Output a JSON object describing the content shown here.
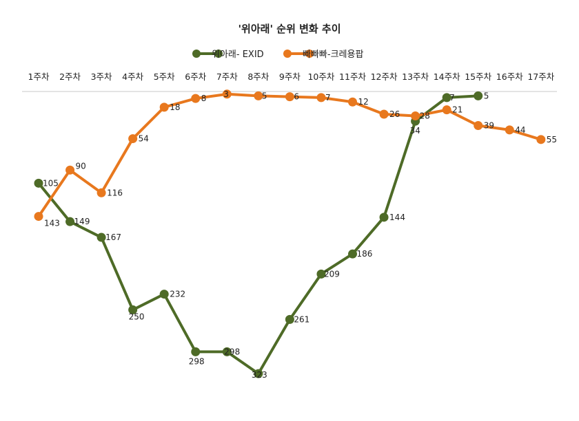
{
  "chart_data": {
    "type": "line",
    "title": "'위아래' 순위 변화 추이",
    "categories": [
      "1주차",
      "2주차",
      "3주차",
      "4주차",
      "5주차",
      "6주차",
      "7주차",
      "8주차",
      "9주차",
      "10주차",
      "11주차",
      "12주차",
      "13주차",
      "14주차",
      "15주차",
      "16주차",
      "17주차"
    ],
    "series": [
      {
        "name": "위아래- EXID",
        "color": "#4e6b27",
        "values": [
          105,
          149,
          167,
          250,
          232,
          298,
          298,
          323,
          261,
          209,
          186,
          144,
          34,
          7,
          5,
          null,
          null
        ]
      },
      {
        "name": "빠빠빠-크레용팝",
        "color": "#e8781e",
        "values": [
          143,
          90,
          116,
          54,
          18,
          8,
          3,
          5,
          6,
          7,
          12,
          26,
          28,
          21,
          39,
          44,
          55
        ]
      }
    ],
    "y_axis": {
      "reversed": true,
      "visible": false,
      "range": [
        0,
        330
      ]
    },
    "x_axis_position": "top",
    "legend_position": "top",
    "grid": false
  }
}
